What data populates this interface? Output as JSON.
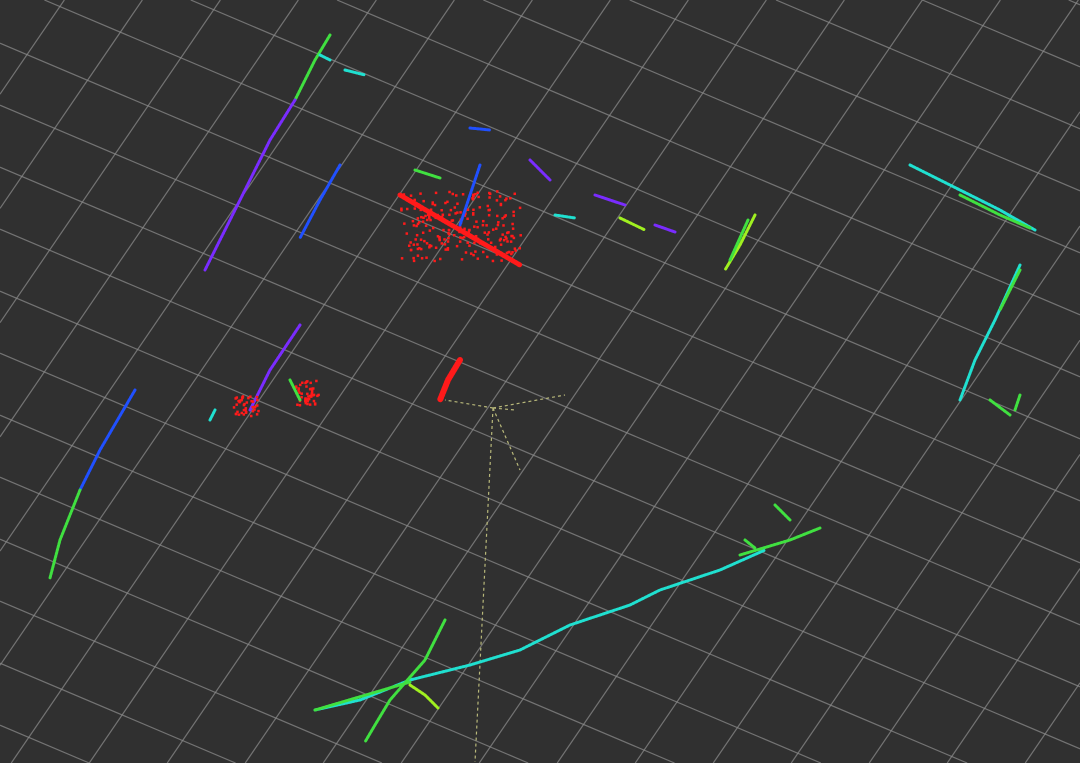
{
  "viewport": {
    "background_color": "#303030",
    "grid_color": "#8a8a8a",
    "ray_color": "#b8b87a"
  },
  "clouds": {
    "colors": {
      "red": "#ff1a1a",
      "blue": "#2050ff",
      "violet": "#7a2cff",
      "cyan": "#20e0d0",
      "green": "#40e040",
      "lime": "#a0f020"
    }
  }
}
